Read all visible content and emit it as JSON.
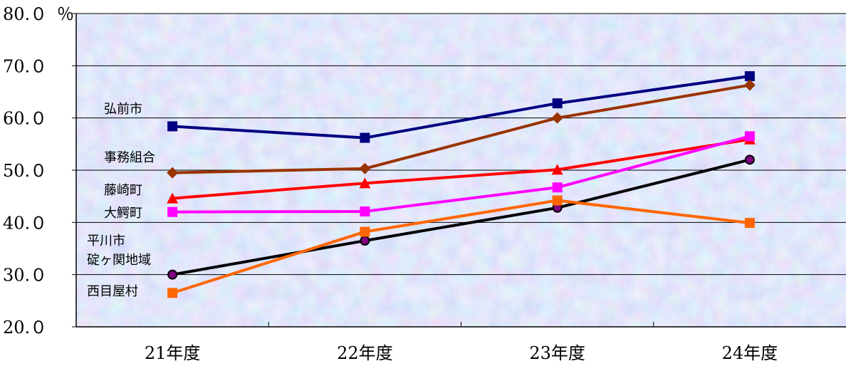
{
  "chart_data": {
    "type": "line",
    "categories": [
      "21年度",
      "22年度",
      "23年度",
      "24年度"
    ],
    "ylim": [
      20,
      80
    ],
    "yticks": [
      20,
      30,
      40,
      50,
      60,
      70,
      80
    ],
    "ytick_labels": [
      "20.０",
      "30.０",
      "40.０",
      "50.０",
      "60.０",
      "70.０",
      "80.０"
    ],
    "yunit": "％",
    "grid": "horizontal",
    "background": "textured-blue",
    "series": [
      {
        "label": "弘前市",
        "values": [
          58.4,
          56.2,
          62.8,
          68.0
        ],
        "color": "#000080",
        "marker": "square"
      },
      {
        "label": "事務組合",
        "values": [
          49.5,
          50.3,
          60.0,
          66.3
        ],
        "color": "#993300",
        "marker": "diamond"
      },
      {
        "label": "藤崎町",
        "values": [
          44.6,
          47.5,
          50.1,
          55.9
        ],
        "color": "#ff0000",
        "marker": "triangle"
      },
      {
        "label": "大鰐町",
        "values": [
          42.0,
          42.1,
          46.7,
          56.5
        ],
        "color": "#ff00ff",
        "marker": "square"
      },
      {
        "label": "平川市",
        "values": [
          null,
          null,
          null,
          null
        ],
        "color": null,
        "marker": "none"
      },
      {
        "label": "碇ヶ関地域",
        "values": [
          30.0,
          36.5,
          42.8,
          52.0
        ],
        "color": "#000000",
        "marker": "circle"
      },
      {
        "label": "西目屋村",
        "values": [
          26.5,
          38.2,
          44.2,
          39.9
        ],
        "color": "#ff6600",
        "marker": "square"
      }
    ]
  }
}
